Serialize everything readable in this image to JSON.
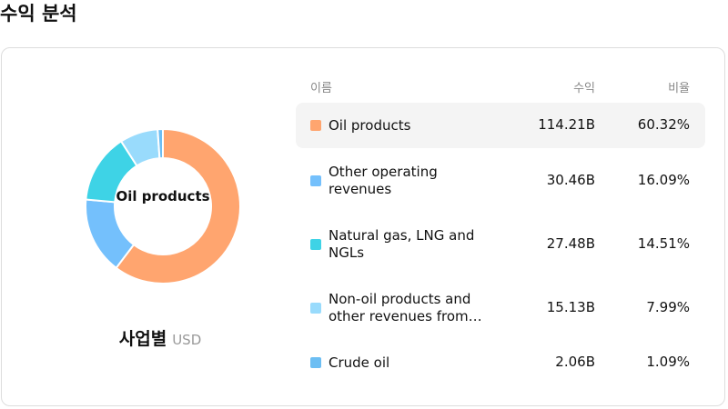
{
  "chart_data": {
    "type": "pie",
    "title": "수익 분석",
    "subtitle": "사업별",
    "unit": "USD",
    "center_label": "Oil products",
    "columns": [
      "이름",
      "수익",
      "비율"
    ],
    "categories": [
      "Oil products",
      "Other operating revenues",
      "Natural gas, LNG and NGLs",
      "Non-oil products and other revenues from…",
      "Crude oil"
    ],
    "values": [
      114.21,
      30.46,
      27.48,
      15.13,
      2.06
    ],
    "value_labels": [
      "114.21B",
      "30.46B",
      "27.48B",
      "15.13B",
      "2.06B"
    ],
    "percentages": [
      60.32,
      16.09,
      14.51,
      7.99,
      1.09
    ],
    "percentage_labels": [
      "60.32%",
      "16.09%",
      "14.51%",
      "7.99%",
      "1.09%"
    ],
    "colors": [
      "#FFA56F",
      "#74C0FC",
      "#3ED3E6",
      "#99DBFC",
      "#6CBEF3"
    ],
    "highlighted": 0
  }
}
